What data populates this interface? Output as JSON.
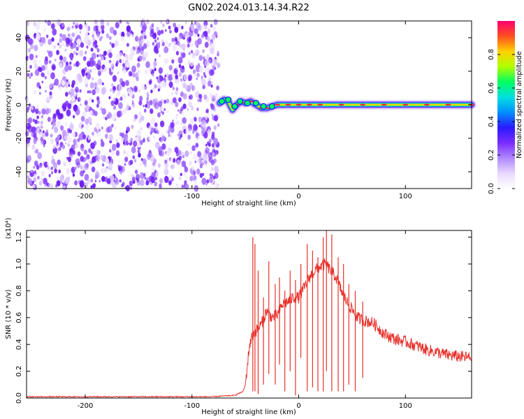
{
  "title": "GN02.2024.013.14.34.R22",
  "chart_data": [
    {
      "type": "heatmap",
      "xlabel": "Height of straight line (km)",
      "ylabel": "Frequency (Hz)",
      "xlim": [
        -255,
        162
      ],
      "ylim": [
        -50,
        50
      ],
      "xticks": [
        -200,
        -100,
        0,
        100
      ],
      "yticks": [
        -40,
        -20,
        0,
        20,
        40
      ],
      "colorbar": {
        "label": "Normalized spectral amplitude",
        "range": [
          0.0,
          1.0
        ],
        "ticks": [
          0.0,
          0.2,
          0.4,
          0.6,
          0.8
        ],
        "tick_labels": [
          "0.0",
          "0.2",
          "0.4",
          "0.6",
          "0.8"
        ],
        "colormap": [
          "#ffffff",
          "#e8d8ff",
          "#b088ff",
          "#7a2cff",
          "#2a1aff",
          "#0090ff",
          "#00e0e0",
          "#00ff60",
          "#b0ff00",
          "#ffd000",
          "#ff5020",
          "#ff0070"
        ]
      },
      "noise_region": {
        "x": [
          -255,
          -75
        ],
        "freq": [
          -50,
          50
        ],
        "color": "#7a2cff"
      },
      "signal_trace": [
        {
          "x": -74,
          "f": 1
        },
        {
          "x": -70,
          "f": 3
        },
        {
          "x": -66,
          "f": 2
        },
        {
          "x": -62,
          "f": -3
        },
        {
          "x": -58,
          "f": 0
        },
        {
          "x": -54,
          "f": 2
        },
        {
          "x": -50,
          "f": 1
        },
        {
          "x": -45,
          "f": 2
        },
        {
          "x": -40,
          "f": 0
        },
        {
          "x": -35,
          "f": -2
        },
        {
          "x": -30,
          "f": -2
        },
        {
          "x": -25,
          "f": -1
        },
        {
          "x": -20,
          "f": 0
        },
        {
          "x": -10,
          "f": 0
        },
        {
          "x": 0,
          "f": 0
        },
        {
          "x": 10,
          "f": 0
        },
        {
          "x": 20,
          "f": 0
        },
        {
          "x": 40,
          "f": 0
        },
        {
          "x": 60,
          "f": 0
        },
        {
          "x": 80,
          "f": 0
        },
        {
          "x": 100,
          "f": 0
        },
        {
          "x": 120,
          "f": 0
        },
        {
          "x": 140,
          "f": 0
        },
        {
          "x": 162,
          "f": 0
        }
      ]
    },
    {
      "type": "line",
      "xlabel": "Height of straight line (km)",
      "ylabel": "SNR (10 * v/v)",
      "yscale_label": "(x10⁴)",
      "xlim": [
        -255,
        162
      ],
      "ylim": [
        0,
        1.25
      ],
      "xticks": [
        -200,
        -100,
        0,
        100
      ],
      "yticks": [
        0.0,
        0.2,
        0.4,
        0.6,
        0.8,
        1.0,
        1.2
      ],
      "ytick_labels": [
        "0.0",
        "0.2",
        "0.4",
        "0.6",
        "0.8",
        "1.0",
        "1.2"
      ],
      "series": [
        {
          "color": "#e8302a",
          "x": [
            -255,
            -200,
            -150,
            -100,
            -80,
            -60,
            -52,
            -50,
            -48,
            -46,
            -44,
            -42,
            -40,
            -35,
            -30,
            -25,
            -20,
            -15,
            -10,
            -5,
            0,
            5,
            10,
            15,
            20,
            25,
            30,
            35,
            40,
            45,
            50,
            55,
            60,
            65,
            70,
            75,
            80,
            90,
            100,
            110,
            120,
            130,
            140,
            150,
            162
          ],
          "y": [
            0.01,
            0.01,
            0.01,
            0.01,
            0.01,
            0.02,
            0.05,
            0.1,
            0.25,
            0.4,
            0.45,
            0.48,
            0.5,
            0.55,
            0.65,
            0.6,
            0.62,
            0.7,
            0.72,
            0.75,
            0.75,
            0.82,
            0.9,
            0.95,
            0.98,
            1.0,
            0.95,
            0.9,
            0.8,
            0.72,
            0.66,
            0.6,
            0.58,
            0.57,
            0.56,
            0.52,
            0.48,
            0.44,
            0.42,
            0.39,
            0.36,
            0.34,
            0.32,
            0.31,
            0.3
          ]
        }
      ],
      "spikes": [
        {
          "x": -43,
          "top": 1.2,
          "bottom": 0.05
        },
        {
          "x": -41,
          "top": 1.15,
          "bottom": 0.05
        },
        {
          "x": -38,
          "top": 0.95,
          "bottom": 0.03
        },
        {
          "x": -33,
          "top": 0.75,
          "bottom": 0.1
        },
        {
          "x": -28,
          "top": 1.02,
          "bottom": 0.18
        },
        {
          "x": -22,
          "top": 0.85,
          "bottom": 0.1
        },
        {
          "x": -18,
          "top": 0.9,
          "bottom": 0.25
        },
        {
          "x": -13,
          "top": 0.8,
          "bottom": 0.05
        },
        {
          "x": -8,
          "top": 0.95,
          "bottom": 0.2
        },
        {
          "x": -3,
          "top": 0.88,
          "bottom": 0.02
        },
        {
          "x": 2,
          "top": 1.0,
          "bottom": 0.3
        },
        {
          "x": 8,
          "top": 1.15,
          "bottom": 0.05
        },
        {
          "x": 13,
          "top": 1.1,
          "bottom": 0.08
        },
        {
          "x": 18,
          "top": 1.05,
          "bottom": 0.05
        },
        {
          "x": 23,
          "top": 1.2,
          "bottom": 0.05
        },
        {
          "x": 26,
          "top": 1.25,
          "bottom": 0.2
        },
        {
          "x": 31,
          "top": 1.22,
          "bottom": 0.05
        },
        {
          "x": 37,
          "top": 1.05,
          "bottom": 0.05
        },
        {
          "x": 42,
          "top": 1.0,
          "bottom": 0.05
        },
        {
          "x": 47,
          "top": 0.85,
          "bottom": 0.1
        },
        {
          "x": 53,
          "top": 0.8,
          "bottom": 0.05
        },
        {
          "x": 60,
          "top": 0.72,
          "bottom": 0.15
        }
      ]
    }
  ]
}
